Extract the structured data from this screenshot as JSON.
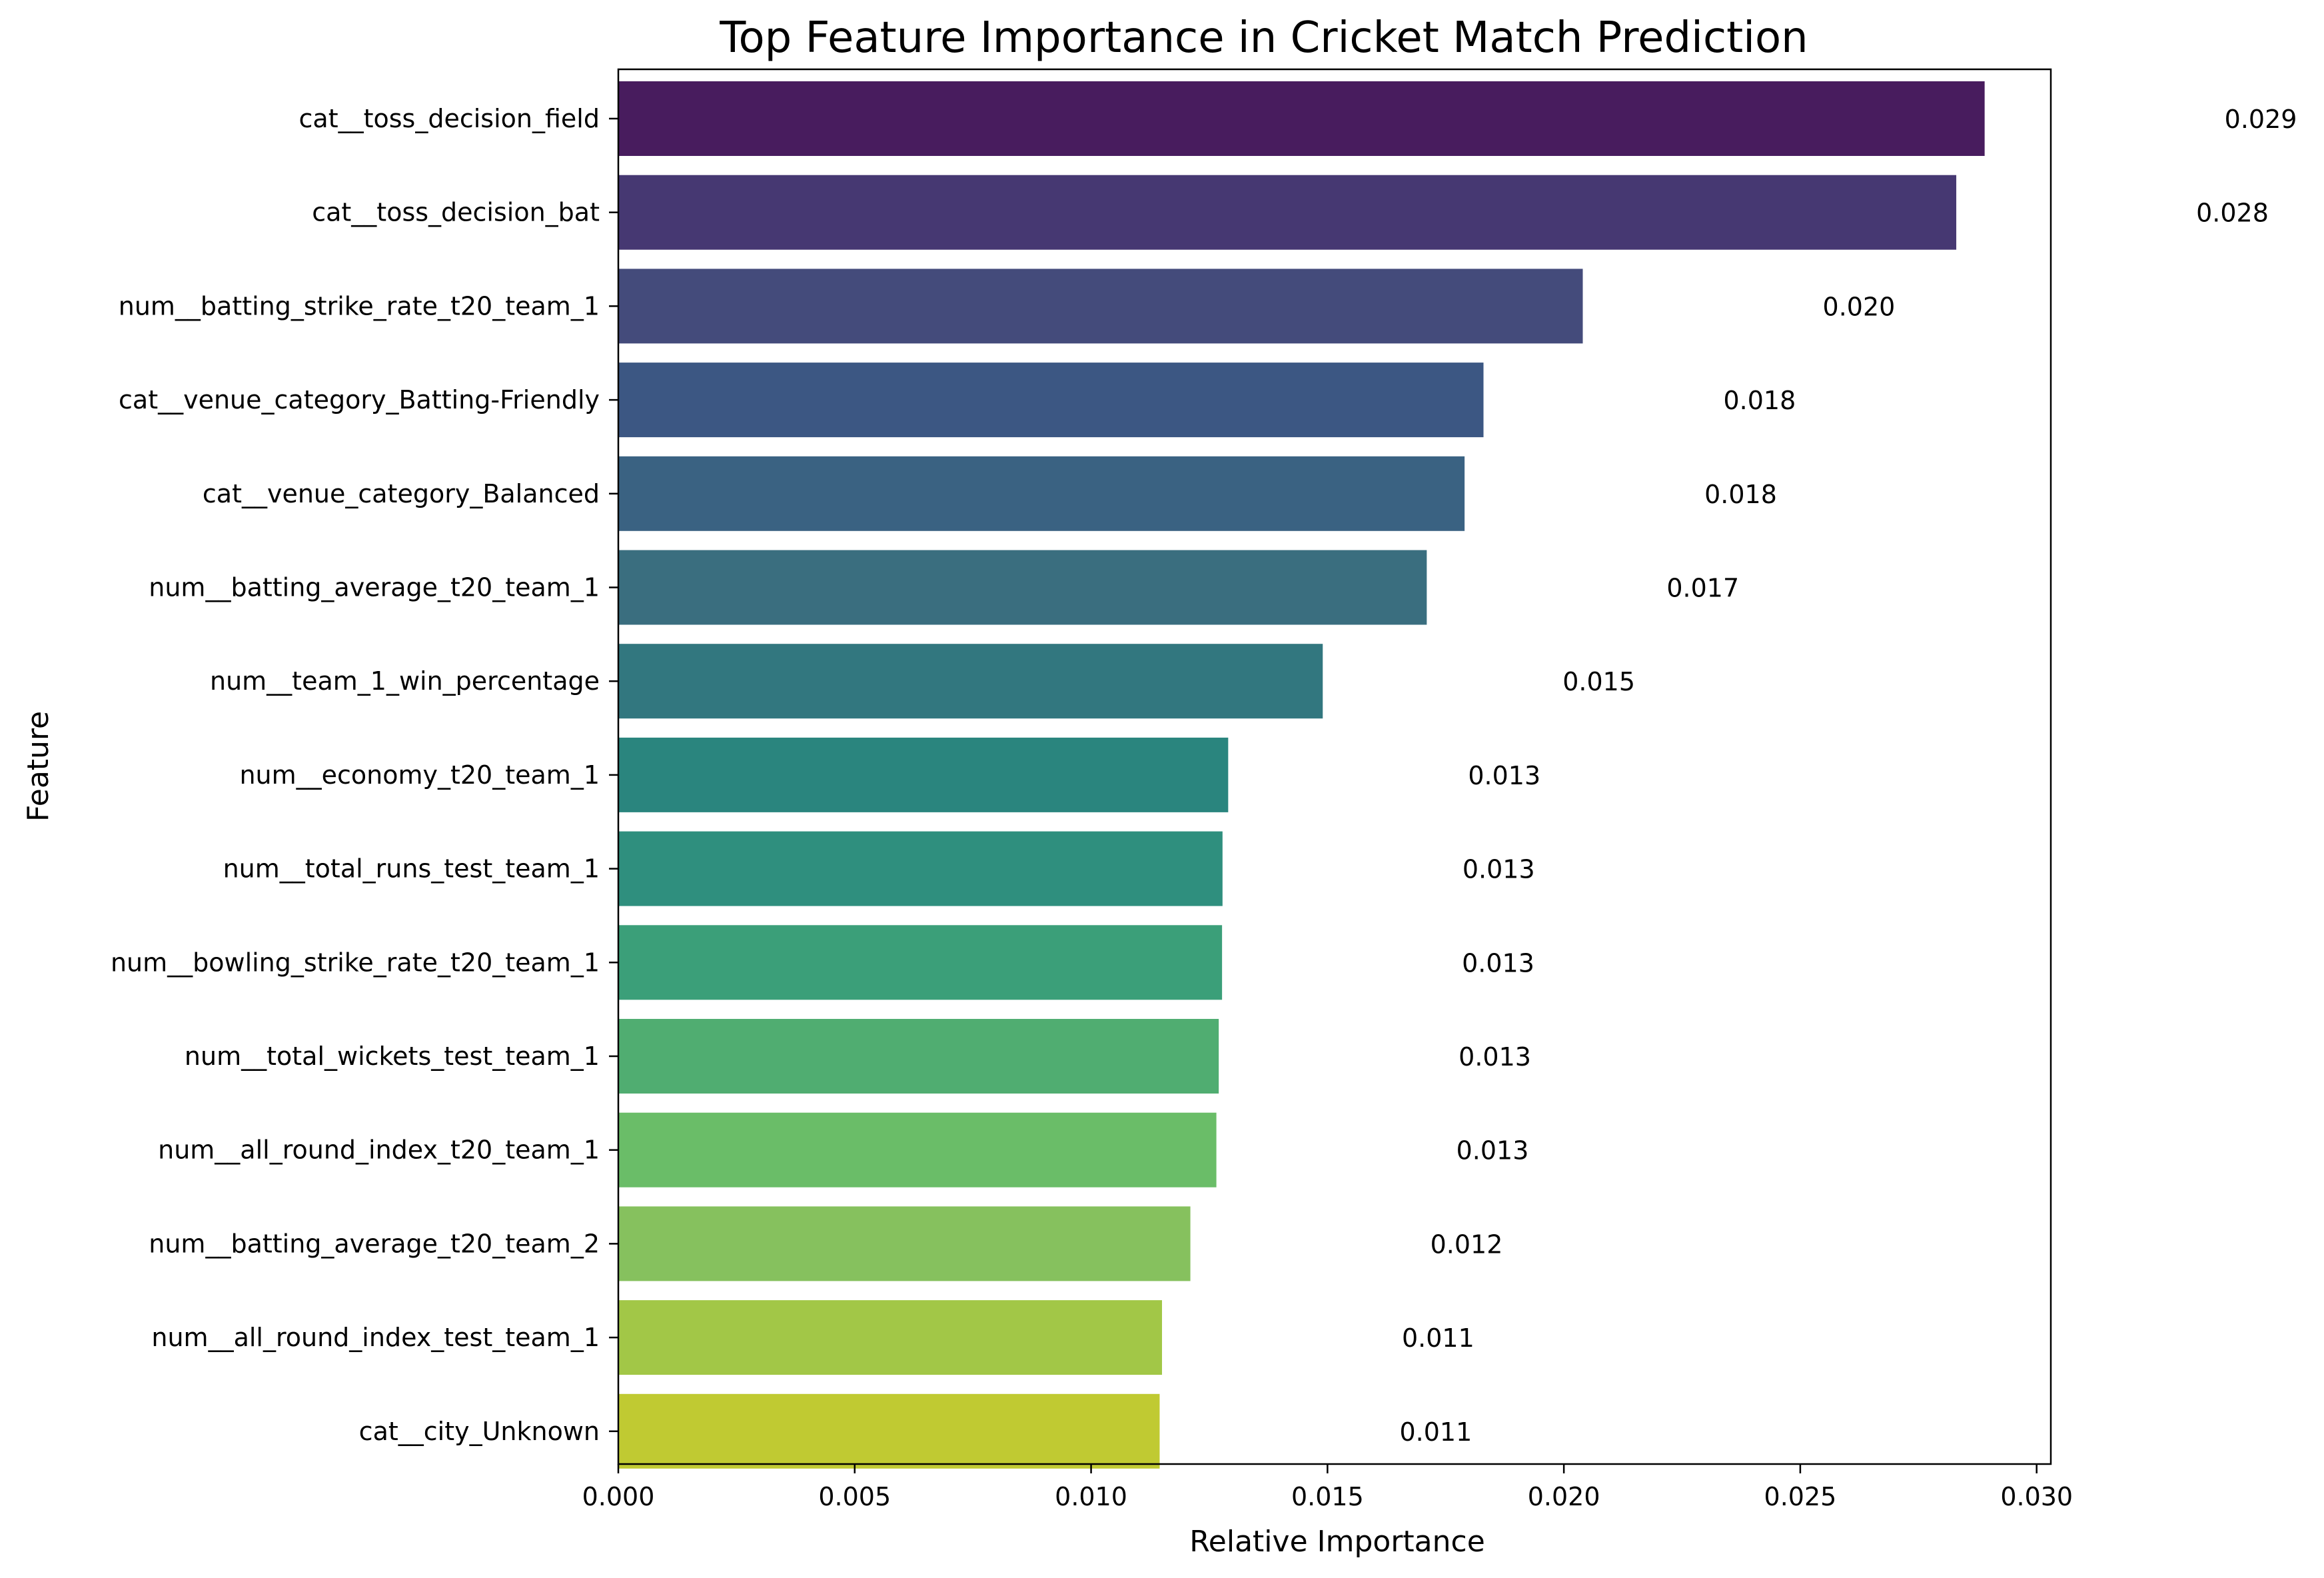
{
  "chart_data": {
    "type": "bar",
    "orientation": "horizontal",
    "title": "Top Feature Importance in Cricket Match Prediction",
    "xlabel": "Relative Importance",
    "ylabel": "Feature",
    "xlim": [
      0,
      0.0303
    ],
    "xticks": [
      0.0,
      0.005,
      0.01,
      0.015,
      0.02,
      0.025,
      0.03
    ],
    "xtick_labels": [
      "0.000",
      "0.005",
      "0.010",
      "0.015",
      "0.020",
      "0.025",
      "0.030"
    ],
    "grid": false,
    "legend": "none",
    "categories": [
      "cat__toss_decision_field",
      "cat__toss_decision_bat",
      "num__batting_strike_rate_t20_team_1",
      "cat__venue_category_Batting-Friendly",
      "cat__venue_category_Balanced",
      "num__batting_average_t20_team_1",
      "num__team_1_win_percentage",
      "num__economy_t20_team_1",
      "num__total_runs_test_team_1",
      "num__bowling_strike_rate_t20_team_1",
      "num__total_wickets_test_team_1",
      "num__all_round_index_t20_team_1",
      "num__batting_average_t20_team_2",
      "num__all_round_index_test_team_1",
      "cat__city_Unknown"
    ],
    "values": [
      0.0289,
      0.0283,
      0.0204,
      0.0183,
      0.0179,
      0.0171,
      0.0149,
      0.0129,
      0.01278,
      0.01277,
      0.0127,
      0.01265,
      0.0121,
      0.0115,
      0.01145
    ],
    "value_labels": [
      "0.029",
      "0.028",
      "0.020",
      "0.018",
      "0.018",
      "0.017",
      "0.015",
      "0.013",
      "0.013",
      "0.013",
      "0.013",
      "0.013",
      "0.012",
      "0.011",
      "0.011"
    ],
    "colors": [
      "#481c5e",
      "#463872",
      "#444b7b",
      "#3c5783",
      "#3a6282",
      "#3a6e7f",
      "#32777f",
      "#2a857e",
      "#2f8f7e",
      "#3b9f79",
      "#50ad71",
      "#6abd68",
      "#86c15e",
      "#a2c747",
      "#c0ca32"
    ]
  }
}
